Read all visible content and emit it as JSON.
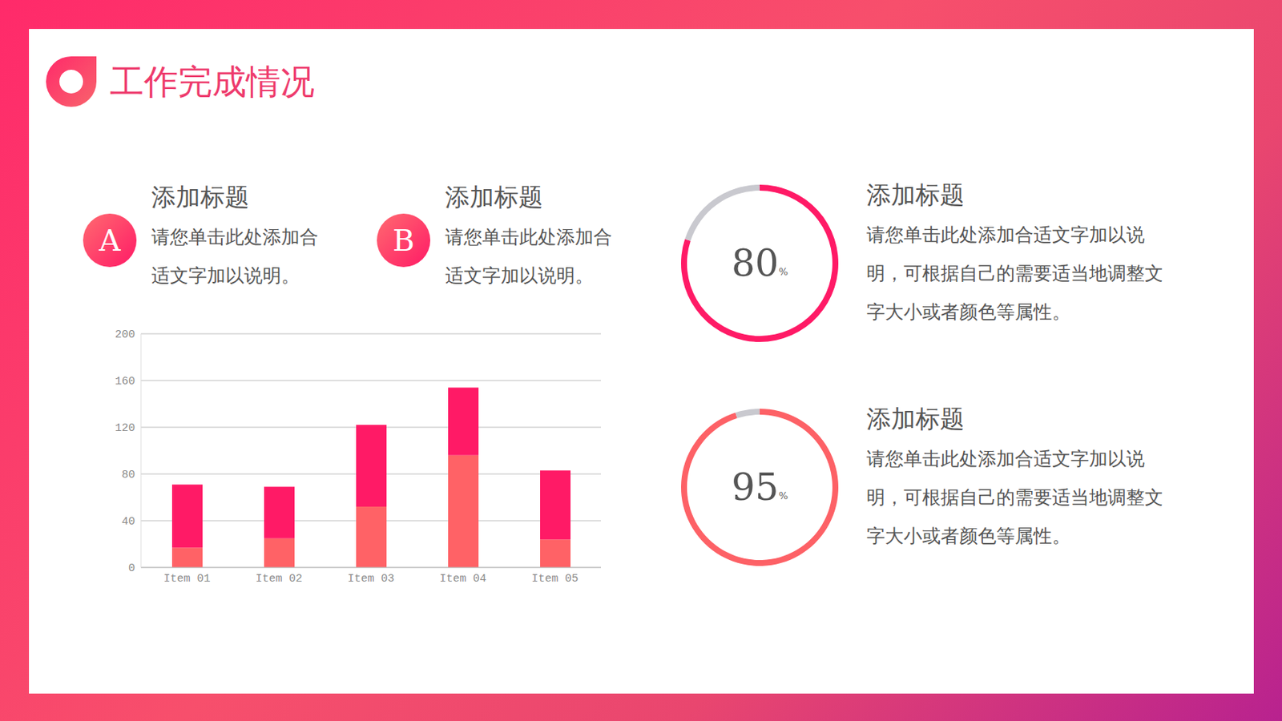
{
  "title": "工作完成情况",
  "items": [
    {
      "badge": "A",
      "heading": "添加标题",
      "text": "请您单击此处添加合适文字加以说明。"
    },
    {
      "badge": "B",
      "heading": "添加标题",
      "text": "请您单击此处添加合适文字加以说明。"
    }
  ],
  "chart_data": [
    {
      "type": "bar",
      "stacked": true,
      "categories": [
        "Item 01",
        "Item 02",
        "Item 03",
        "Item 04",
        "Item 05"
      ],
      "series": [
        {
          "color": "#ff6266",
          "values": [
            17,
            25,
            52,
            96,
            24
          ]
        },
        {
          "color": "#ff1a66",
          "values": [
            54,
            44,
            70,
            58,
            59
          ]
        }
      ],
      "ylim": [
        0,
        200
      ],
      "yticks": [
        0,
        40,
        80,
        120,
        160,
        200
      ],
      "grid": true
    },
    {
      "type": "gauge",
      "title": "添加标题",
      "subtitle": "请您单击此处添加合适文字加以说明，可根据自己的需要适当地调整文字大小或者颜色等属性。",
      "values": [
        80
      ],
      "value_labels": [
        "80%"
      ],
      "ylim": [
        0,
        100
      ],
      "color": "#ff1a66"
    },
    {
      "type": "gauge",
      "title": "添加标题",
      "subtitle": "请您单击此处添加合适文字加以说明，可根据自己的需要适当地调整文字大小或者颜色等属性。",
      "values": [
        95
      ],
      "value_labels": [
        "95%"
      ],
      "ylim": [
        0,
        100
      ],
      "color": "#fd6166"
    }
  ]
}
